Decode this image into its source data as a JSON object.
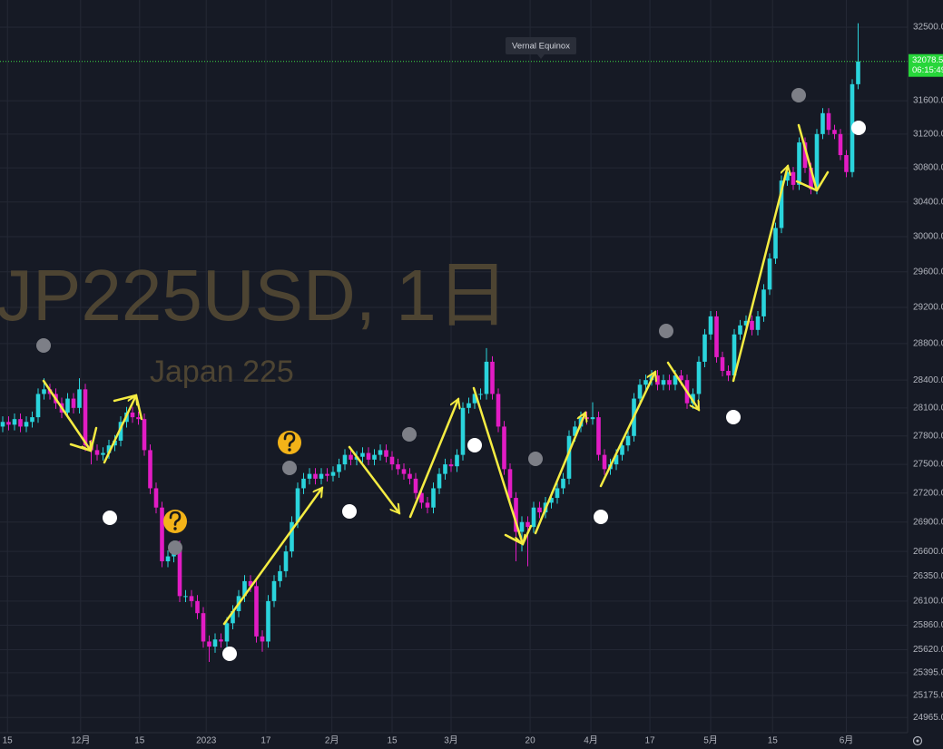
{
  "chart_data": {
    "type": "candlestick",
    "title": "JP225USD, 1日",
    "subtitle": "Japan 225",
    "annotation": "Vernal Equinox",
    "countdown": "06:15:49",
    "last_price": 32078.5,
    "log_scale": true,
    "grid": true,
    "up_color": "#2ad4dc",
    "down_color": "#e21cc4",
    "ylim": [
      24820,
      32840
    ],
    "yticks": [
      {
        "value": 24965,
        "label": "24965.0"
      },
      {
        "value": 25175,
        "label": "25175.0"
      },
      {
        "value": 25395,
        "label": "25395.0"
      },
      {
        "value": 25620,
        "label": "25620.0"
      },
      {
        "value": 25860,
        "label": "25860.0"
      },
      {
        "value": 26100,
        "label": "26100.0"
      },
      {
        "value": 26350,
        "label": "26350.0"
      },
      {
        "value": 26600,
        "label": "26600.0"
      },
      {
        "value": 26900,
        "label": "26900.0"
      },
      {
        "value": 27200,
        "label": "27200.0"
      },
      {
        "value": 27500,
        "label": "27500.0"
      },
      {
        "value": 27800,
        "label": "27800.0"
      },
      {
        "value": 28100,
        "label": "28100.0"
      },
      {
        "value": 28400,
        "label": "28400.0"
      },
      {
        "value": 28800,
        "label": "28800.0"
      },
      {
        "value": 29200,
        "label": "29200.0"
      },
      {
        "value": 29600,
        "label": "29600.0"
      },
      {
        "value": 30000,
        "label": "30000.0"
      },
      {
        "value": 30400,
        "label": "30400.0"
      },
      {
        "value": 30800,
        "label": "30800.0"
      },
      {
        "value": 31200,
        "label": "31200.0"
      },
      {
        "value": 31600,
        "label": "31600.0"
      },
      {
        "value": 32500,
        "label": "32500.0"
      }
    ],
    "xticks": [
      {
        "value": 0.8,
        "label": "15"
      },
      {
        "value": 13.2,
        "label": "12月"
      },
      {
        "value": 23.2,
        "label": "15"
      },
      {
        "value": 34.5,
        "label": "2023"
      },
      {
        "value": 44.6,
        "label": "17"
      },
      {
        "value": 55.8,
        "label": "2月"
      },
      {
        "value": 66,
        "label": "15"
      },
      {
        "value": 76,
        "label": "3月"
      },
      {
        "value": 89.4,
        "label": "20"
      },
      {
        "value": 99.7,
        "label": "4月"
      },
      {
        "value": 109.7,
        "label": "17"
      },
      {
        "value": 120,
        "label": "5月"
      },
      {
        "value": 130.5,
        "label": "15"
      },
      {
        "value": 143,
        "label": "6月"
      }
    ],
    "ohlc": [
      [
        27900,
        28010,
        27840,
        27950
      ],
      [
        27950,
        28010,
        27860,
        27920
      ],
      [
        27920,
        28040,
        27860,
        27980
      ],
      [
        27980,
        28040,
        27840,
        27900
      ],
      [
        27900,
        28010,
        27840,
        27950
      ],
      [
        27950,
        28060,
        27890,
        28000
      ],
      [
        28000,
        28310,
        27940,
        28250
      ],
      [
        28250,
        28420,
        28190,
        28300
      ],
      [
        28300,
        28360,
        28190,
        28250
      ],
      [
        28250,
        28310,
        28090,
        28150
      ],
      [
        28150,
        28210,
        27990,
        28050
      ],
      [
        28050,
        28260,
        27990,
        28200
      ],
      [
        28200,
        28260,
        28040,
        28100
      ],
      [
        28100,
        28420,
        28040,
        28300
      ],
      [
        28300,
        28360,
        27640,
        27700
      ],
      [
        27700,
        27760,
        27500,
        27650
      ],
      [
        27650,
        27710,
        27540,
        27600
      ],
      [
        27600,
        27680,
        27540,
        27620
      ],
      [
        27620,
        27760,
        27560,
        27700
      ],
      [
        27700,
        27810,
        27640,
        27750
      ],
      [
        27750,
        28010,
        27690,
        27950
      ],
      [
        27950,
        28110,
        27890,
        28050
      ],
      [
        28050,
        28110,
        27940,
        28000
      ],
      [
        28000,
        28060,
        27920,
        27980
      ],
      [
        27980,
        28040,
        27590,
        27650
      ],
      [
        27650,
        27710,
        27190,
        27250
      ],
      [
        27250,
        27310,
        26990,
        27050
      ],
      [
        27050,
        27110,
        26440,
        26500
      ],
      [
        26500,
        26610,
        26440,
        26550
      ],
      [
        26550,
        26710,
        26490,
        26650
      ],
      [
        26650,
        26710,
        26090,
        26150
      ],
      [
        26150,
        26210,
        26090,
        26150
      ],
      [
        26150,
        26210,
        26040,
        26100
      ],
      [
        26100,
        26160,
        25920,
        25980
      ],
      [
        25980,
        26040,
        25640,
        25700
      ],
      [
        25700,
        25760,
        25500,
        25650
      ],
      [
        25650,
        25780,
        25590,
        25720
      ],
      [
        25720,
        25780,
        25640,
        25700
      ],
      [
        25700,
        25940,
        25640,
        25880
      ],
      [
        25880,
        26060,
        25820,
        26000
      ],
      [
        26000,
        26210,
        25940,
        26150
      ],
      [
        26150,
        26360,
        26090,
        26300
      ],
      [
        26300,
        26360,
        26190,
        26250
      ],
      [
        26250,
        26310,
        25690,
        25750
      ],
      [
        25750,
        25810,
        25600,
        25700
      ],
      [
        25700,
        26160,
        25640,
        26100
      ],
      [
        26100,
        26360,
        26040,
        26300
      ],
      [
        26300,
        26460,
        26240,
        26400
      ],
      [
        26400,
        26660,
        26340,
        26600
      ],
      [
        26600,
        26960,
        26540,
        26900
      ],
      [
        26900,
        27310,
        26840,
        27250
      ],
      [
        27250,
        27410,
        27190,
        27350
      ],
      [
        27350,
        27460,
        27290,
        27400
      ],
      [
        27400,
        27460,
        27290,
        27350
      ],
      [
        27350,
        27460,
        27290,
        27400
      ],
      [
        27400,
        27460,
        27320,
        27380
      ],
      [
        27380,
        27480,
        27320,
        27420
      ],
      [
        27420,
        27560,
        27360,
        27500
      ],
      [
        27500,
        27660,
        27440,
        27600
      ],
      [
        27600,
        27660,
        27490,
        27550
      ],
      [
        27550,
        27640,
        27490,
        27580
      ],
      [
        27580,
        27680,
        27520,
        27620
      ],
      [
        27620,
        27680,
        27490,
        27550
      ],
      [
        27550,
        27660,
        27490,
        27600
      ],
      [
        27600,
        27710,
        27540,
        27650
      ],
      [
        27650,
        27710,
        27520,
        27580
      ],
      [
        27580,
        27640,
        27440,
        27500
      ],
      [
        27500,
        27560,
        27390,
        27450
      ],
      [
        27450,
        27510,
        27340,
        27400
      ],
      [
        27400,
        27460,
        27290,
        27350
      ],
      [
        27350,
        27410,
        27140,
        27200
      ],
      [
        27200,
        27260,
        27040,
        27100
      ],
      [
        27100,
        27160,
        26990,
        27050
      ],
      [
        27050,
        27310,
        26990,
        27250
      ],
      [
        27250,
        27460,
        27190,
        27400
      ],
      [
        27400,
        27560,
        27340,
        27500
      ],
      [
        27500,
        27560,
        27420,
        27480
      ],
      [
        27480,
        27660,
        27420,
        27600
      ],
      [
        27600,
        28160,
        27540,
        28100
      ],
      [
        28100,
        28210,
        28040,
        28150
      ],
      [
        28150,
        28310,
        28090,
        28250
      ],
      [
        28250,
        28310,
        28190,
        28250
      ],
      [
        28250,
        28750,
        28190,
        28600
      ],
      [
        28600,
        28660,
        28190,
        28250
      ],
      [
        28250,
        28310,
        27840,
        27900
      ],
      [
        27900,
        27960,
        27390,
        27450
      ],
      [
        27450,
        27510,
        27090,
        27150
      ],
      [
        27150,
        27210,
        26500,
        26800
      ],
      [
        26800,
        26960,
        26600,
        26900
      ],
      [
        26900,
        26960,
        26450,
        26850
      ],
      [
        26850,
        27110,
        26790,
        27050
      ],
      [
        27050,
        27110,
        26940,
        27000
      ],
      [
        27000,
        27160,
        26940,
        27100
      ],
      [
        27100,
        27210,
        27040,
        27150
      ],
      [
        27150,
        27310,
        27090,
        27250
      ],
      [
        27250,
        27410,
        27190,
        27350
      ],
      [
        27350,
        27860,
        27290,
        27800
      ],
      [
        27800,
        27960,
        27740,
        27900
      ],
      [
        27900,
        28060,
        27840,
        28000
      ],
      [
        28000,
        28060,
        27920,
        27980
      ],
      [
        27980,
        28160,
        27920,
        28000
      ],
      [
        28000,
        28060,
        27540,
        27600
      ],
      [
        27600,
        27660,
        27390,
        27450
      ],
      [
        27450,
        27560,
        27390,
        27500
      ],
      [
        27500,
        27660,
        27440,
        27600
      ],
      [
        27600,
        27760,
        27540,
        27700
      ],
      [
        27700,
        27860,
        27640,
        27800
      ],
      [
        27800,
        28260,
        27740,
        28200
      ],
      [
        28200,
        28410,
        28140,
        28350
      ],
      [
        28350,
        28460,
        28290,
        28400
      ],
      [
        28400,
        28510,
        28340,
        28450
      ],
      [
        28450,
        28510,
        28290,
        28350
      ],
      [
        28350,
        28460,
        28290,
        28400
      ],
      [
        28400,
        28460,
        28290,
        28350
      ],
      [
        28350,
        28510,
        28290,
        28450
      ],
      [
        28450,
        28510,
        28340,
        28400
      ],
      [
        28400,
        28460,
        28090,
        28150
      ],
      [
        28150,
        28310,
        28090,
        28250
      ],
      [
        28250,
        28660,
        28190,
        28600
      ],
      [
        28600,
        28960,
        28540,
        28900
      ],
      [
        28900,
        29160,
        28840,
        29100
      ],
      [
        29100,
        29160,
        28590,
        28650
      ],
      [
        28650,
        28710,
        28440,
        28500
      ],
      [
        28500,
        28560,
        28390,
        28450
      ],
      [
        28450,
        28960,
        28390,
        28900
      ],
      [
        28900,
        29060,
        28840,
        29000
      ],
      [
        29000,
        29110,
        28940,
        29050
      ],
      [
        29050,
        29110,
        28890,
        28950
      ],
      [
        28950,
        29160,
        28890,
        29100
      ],
      [
        29100,
        29460,
        29040,
        29400
      ],
      [
        29400,
        29810,
        29340,
        29750
      ],
      [
        29750,
        30160,
        29690,
        30100
      ],
      [
        30100,
        30710,
        30040,
        30650
      ],
      [
        30650,
        30810,
        30590,
        30750
      ],
      [
        30750,
        30810,
        30540,
        30600
      ],
      [
        30600,
        31160,
        30540,
        31100
      ],
      [
        31100,
        31160,
        30740,
        30800
      ],
      [
        30800,
        30860,
        30490,
        30550
      ],
      [
        30550,
        31260,
        30490,
        31200
      ],
      [
        31200,
        31510,
        31140,
        31450
      ],
      [
        31450,
        31510,
        31190,
        31250
      ],
      [
        31250,
        31310,
        31140,
        31200
      ],
      [
        31200,
        31260,
        30890,
        30950
      ],
      [
        30950,
        31010,
        30690,
        30750
      ],
      [
        30750,
        31860,
        30690,
        31800
      ],
      [
        31800,
        32550,
        31740,
        32078.5
      ]
    ]
  }
}
